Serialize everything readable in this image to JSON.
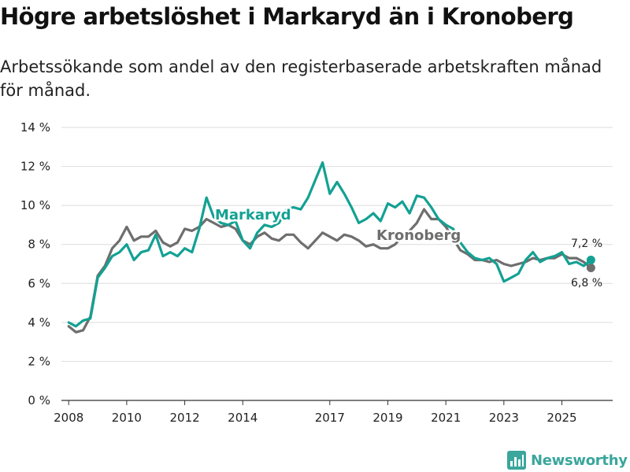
{
  "header": {
    "title": "Högre arbetslöshet i Markaryd än i Kronoberg",
    "subtitle": "Arbetssökande som andel av den registerbaserade arbetskraften månad för månad."
  },
  "brand": {
    "name": "Newsworthy",
    "icon": "newsworthy-logo-icon"
  },
  "colors": {
    "markaryd": "#13a193",
    "kronoberg": "#6e6e6e",
    "grid": "#dedede",
    "axis": "#333333"
  },
  "chart_data": {
    "type": "line",
    "title": "Högre arbetslöshet i Markaryd än i Kronoberg",
    "xlabel": "",
    "ylabel": "",
    "ylim": [
      0,
      14
    ],
    "xlim": [
      2007.75,
      2026.75
    ],
    "y_ticks": [
      0,
      2,
      4,
      6,
      8,
      10,
      12,
      14
    ],
    "y_tick_labels": [
      "0 %",
      "2 %",
      "4 %",
      "6 %",
      "8 %",
      "10 %",
      "12 %",
      "14 %"
    ],
    "x_ticks": [
      2008,
      2010,
      2012,
      2014,
      2017,
      2019,
      2021,
      2023,
      2025
    ],
    "x_tick_labels": [
      "2008",
      "2010",
      "2012",
      "2014",
      "2017",
      "2019",
      "2021",
      "2023",
      "2025"
    ],
    "grid": true,
    "series": [
      {
        "name": "Markaryd",
        "x": [
          2008.0,
          2008.25,
          2008.5,
          2008.75,
          2009.0,
          2009.25,
          2009.5,
          2009.75,
          2010.0,
          2010.25,
          2010.5,
          2010.75,
          2011.0,
          2011.25,
          2011.5,
          2011.75,
          2012.0,
          2012.25,
          2012.5,
          2012.75,
          2013.0,
          2013.25,
          2013.5,
          2013.75,
          2014.0,
          2014.25,
          2014.5,
          2014.75,
          2015.0,
          2015.25,
          2015.5,
          2015.75,
          2016.0,
          2016.25,
          2016.5,
          2016.75,
          2017.0,
          2017.25,
          2017.5,
          2017.75,
          2018.0,
          2018.25,
          2018.5,
          2018.75,
          2019.0,
          2019.25,
          2019.5,
          2019.75,
          2020.0,
          2020.25,
          2020.5,
          2020.75,
          2021.0,
          2021.25,
          2021.5,
          2021.75,
          2022.0,
          2022.25,
          2022.5,
          2022.75,
          2023.0,
          2023.25,
          2023.5,
          2023.75,
          2024.0,
          2024.25,
          2024.5,
          2024.75,
          2025.0,
          2025.25,
          2025.5,
          2025.75,
          2026.0
        ],
        "values": [
          4.0,
          3.8,
          4.1,
          4.2,
          6.3,
          6.8,
          7.4,
          7.6,
          8.0,
          7.2,
          7.6,
          7.7,
          8.5,
          7.4,
          7.6,
          7.4,
          7.8,
          7.6,
          8.8,
          10.4,
          9.4,
          9.1,
          9.0,
          9.2,
          8.2,
          7.8,
          8.6,
          9.0,
          8.9,
          9.1,
          9.8,
          9.9,
          9.8,
          10.4,
          11.3,
          12.2,
          10.6,
          11.2,
          10.6,
          9.9,
          9.1,
          9.3,
          9.6,
          9.2,
          10.1,
          9.9,
          10.2,
          9.6,
          10.5,
          10.4,
          9.9,
          9.3,
          9.0,
          8.8,
          8.1,
          7.6,
          7.3,
          7.2,
          7.3,
          7.0,
          6.1,
          6.3,
          6.5,
          7.2,
          7.6,
          7.1,
          7.3,
          7.4,
          7.6,
          7.0,
          7.1,
          6.9,
          7.2
        ]
      },
      {
        "name": "Kronoberg",
        "x": [
          2008.0,
          2008.25,
          2008.5,
          2008.75,
          2009.0,
          2009.25,
          2009.5,
          2009.75,
          2010.0,
          2010.25,
          2010.5,
          2010.75,
          2011.0,
          2011.25,
          2011.5,
          2011.75,
          2012.0,
          2012.25,
          2012.5,
          2012.75,
          2013.0,
          2013.25,
          2013.5,
          2013.75,
          2014.0,
          2014.25,
          2014.5,
          2014.75,
          2015.0,
          2015.25,
          2015.5,
          2015.75,
          2016.0,
          2016.25,
          2016.5,
          2016.75,
          2017.0,
          2017.25,
          2017.5,
          2017.75,
          2018.0,
          2018.25,
          2018.5,
          2018.75,
          2019.0,
          2019.25,
          2019.5,
          2019.75,
          2020.0,
          2020.25,
          2020.5,
          2020.75,
          2021.0,
          2021.25,
          2021.5,
          2021.75,
          2022.0,
          2022.25,
          2022.5,
          2022.75,
          2023.0,
          2023.25,
          2023.5,
          2023.75,
          2024.0,
          2024.25,
          2024.5,
          2024.75,
          2025.0,
          2025.25,
          2025.5,
          2025.75,
          2026.0
        ],
        "values": [
          3.8,
          3.5,
          3.6,
          4.3,
          6.4,
          6.9,
          7.8,
          8.2,
          8.9,
          8.2,
          8.4,
          8.4,
          8.7,
          8.1,
          7.9,
          8.1,
          8.8,
          8.7,
          8.9,
          9.3,
          9.1,
          8.9,
          9.0,
          8.8,
          8.2,
          8.0,
          8.4,
          8.6,
          8.3,
          8.2,
          8.5,
          8.5,
          8.1,
          7.8,
          8.2,
          8.6,
          8.4,
          8.2,
          8.5,
          8.4,
          8.2,
          7.9,
          8.0,
          7.8,
          7.8,
          8.0,
          8.4,
          8.7,
          9.1,
          9.8,
          9.3,
          9.3,
          8.9,
          8.3,
          7.7,
          7.5,
          7.2,
          7.2,
          7.1,
          7.2,
          7.0,
          6.9,
          7.0,
          7.1,
          7.3,
          7.2,
          7.3,
          7.3,
          7.5,
          7.3,
          7.3,
          7.1,
          6.8
        ]
      }
    ],
    "annotations": {
      "markaryd_end": "7,2 %",
      "kronoberg_end": "6,8 %"
    }
  }
}
